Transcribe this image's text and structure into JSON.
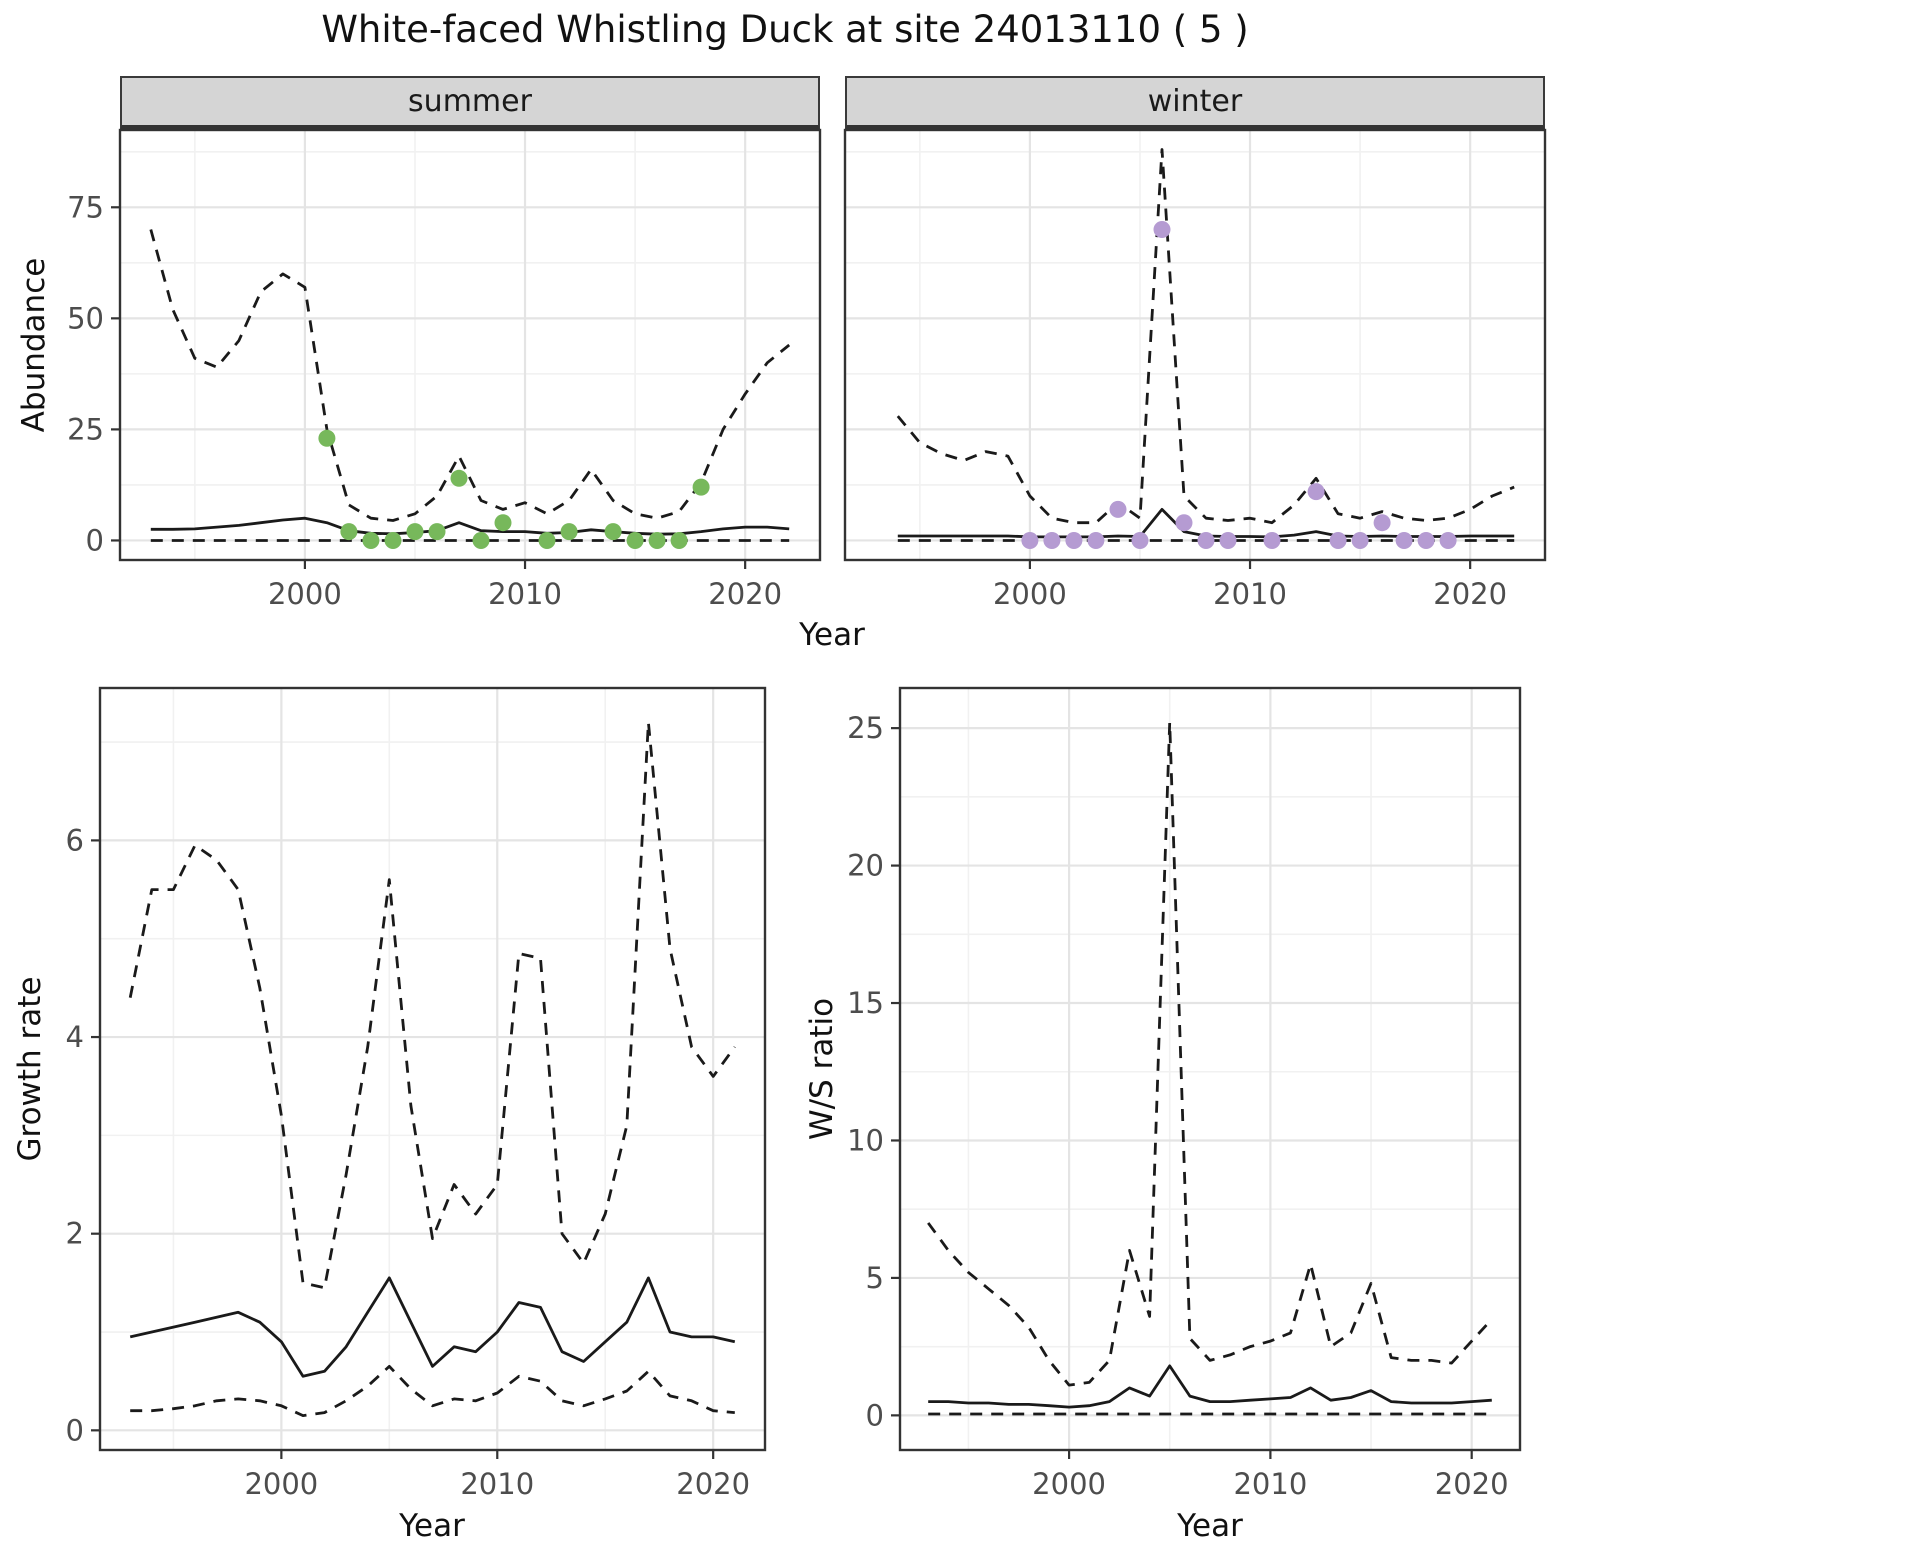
{
  "title": "White-faced Whistling Duck at site 24013110 ( 5 )",
  "colors": {
    "line": "#1a1a1a",
    "strip_bg": "#d5d5d5",
    "grid_major": "#e4e4e4",
    "grid_minor": "#f1f1f1",
    "panel_border": "#333333",
    "tick_text": "#4d4d4d",
    "summer_points": "#77b85b",
    "winter_points": "#b59bd2"
  },
  "chart_data": [
    {
      "id": "abundance-summer",
      "type": "line+scatter",
      "facet": "summer",
      "xlabel": "Year",
      "ylabel": "Abundance",
      "xlim": [
        1991.6,
        2023.4
      ],
      "ylim": [
        -4.4,
        92.4
      ],
      "xticks": [
        2000,
        2010,
        2020
      ],
      "yticks": [
        0,
        25,
        50,
        75
      ],
      "x": [
        1993,
        1994,
        1995,
        1996,
        1997,
        1998,
        1999,
        2000,
        2001,
        2002,
        2003,
        2004,
        2005,
        2006,
        2007,
        2008,
        2009,
        2010,
        2011,
        2012,
        2013,
        2014,
        2015,
        2016,
        2017,
        2018,
        2019,
        2020,
        2021,
        2022
      ],
      "series": [
        {
          "name": "upper_95ci",
          "linetype": "dashed",
          "y": [
            70,
            52,
            41,
            39,
            45,
            56,
            60,
            57,
            25,
            8,
            5,
            4.5,
            6,
            10,
            19,
            9,
            7,
            8.5,
            6,
            9,
            16,
            9,
            6,
            5,
            6.5,
            13,
            25,
            33,
            40,
            44
          ]
        },
        {
          "name": "median",
          "linetype": "solid",
          "y": [
            2.5,
            2.5,
            2.6,
            3,
            3.4,
            4,
            4.6,
            5,
            4,
            2.2,
            1.6,
            1.5,
            1.8,
            2.2,
            4,
            2.2,
            2,
            2,
            1.6,
            1.8,
            2.4,
            2,
            1.6,
            1.4,
            1.5,
            2,
            2.6,
            3,
            3,
            2.6
          ]
        },
        {
          "name": "lower_95ci",
          "linetype": "dashed",
          "y": [
            0,
            0,
            0,
            0,
            0,
            0,
            0,
            0,
            0,
            0,
            0,
            0,
            0,
            0,
            0,
            0,
            0,
            0,
            0,
            0,
            0,
            0,
            0,
            0,
            0,
            0,
            0,
            0,
            0,
            0
          ]
        }
      ],
      "points": {
        "name": "observed_summer_counts",
        "color": "#77b85b",
        "x": [
          2001,
          2002,
          2003,
          2004,
          2005,
          2006,
          2007,
          2008,
          2009,
          2011,
          2012,
          2014,
          2015,
          2016,
          2017,
          2018
        ],
        "y": [
          23,
          2,
          0,
          0,
          2,
          2,
          14,
          0,
          4,
          0,
          2,
          2,
          0,
          0,
          0,
          12
        ]
      }
    },
    {
      "id": "abundance-winter",
      "type": "line+scatter",
      "facet": "winter",
      "xlabel": "Year",
      "ylabel": "Abundance",
      "xlim": [
        1991.6,
        2023.4
      ],
      "ylim": [
        -4.4,
        92.4
      ],
      "xticks": [
        2000,
        2010,
        2020
      ],
      "yticks": [
        0,
        25,
        50,
        75
      ],
      "x": [
        1994,
        1995,
        1996,
        1997,
        1998,
        1999,
        2000,
        2001,
        2002,
        2003,
        2004,
        2005,
        2006,
        2007,
        2008,
        2009,
        2010,
        2011,
        2012,
        2013,
        2014,
        2015,
        2016,
        2017,
        2018,
        2019,
        2020,
        2021,
        2022
      ],
      "series": [
        {
          "name": "upper_95ci",
          "linetype": "dashed",
          "y": [
            28,
            22,
            19.5,
            18,
            20,
            19,
            10,
            5,
            4,
            4,
            8.5,
            5,
            88,
            10,
            5,
            4.5,
            5,
            4,
            8,
            14,
            6,
            5,
            6.5,
            5,
            4.5,
            5,
            7,
            10,
            12
          ]
        },
        {
          "name": "median",
          "linetype": "solid",
          "y": [
            1,
            1,
            1,
            1,
            1,
            1,
            0.8,
            0.8,
            0.8,
            0.8,
            1,
            0.9,
            7,
            2,
            1,
            0.9,
            0.9,
            0.8,
            1.2,
            2,
            1,
            0.9,
            1,
            0.9,
            0.9,
            0.9,
            1,
            1,
            1
          ]
        },
        {
          "name": "lower_95ci",
          "linetype": "dashed",
          "y": [
            0,
            0,
            0,
            0,
            0,
            0,
            0,
            0,
            0,
            0,
            0,
            0,
            0,
            0,
            0,
            0,
            0,
            0,
            0,
            0,
            0,
            0,
            0,
            0,
            0,
            0,
            0,
            0,
            0
          ]
        }
      ],
      "points": {
        "name": "observed_winter_counts",
        "color": "#b59bd2",
        "x": [
          2000,
          2001,
          2002,
          2003,
          2004,
          2005,
          2006,
          2007,
          2008,
          2009,
          2011,
          2013,
          2014,
          2015,
          2016,
          2017,
          2018,
          2019
        ],
        "y": [
          0,
          0,
          0,
          0,
          7,
          0,
          70,
          4,
          0,
          0,
          0,
          11,
          0,
          0,
          4,
          0,
          0,
          0
        ]
      }
    },
    {
      "id": "growth-rate",
      "type": "line",
      "facet": null,
      "xlabel": "Year",
      "ylabel": "Growth rate",
      "xlim": [
        1991.6,
        2022.4
      ],
      "ylim": [
        -0.2,
        7.55
      ],
      "xticks": [
        2000,
        2010,
        2020
      ],
      "yticks": [
        0,
        2,
        4,
        6
      ],
      "x": [
        1993,
        1994,
        1995,
        1996,
        1997,
        1998,
        1999,
        2000,
        2001,
        2002,
        2003,
        2004,
        2005,
        2006,
        2007,
        2008,
        2009,
        2010,
        2011,
        2012,
        2013,
        2014,
        2015,
        2016,
        2017,
        2018,
        2019,
        2020,
        2021
      ],
      "series": [
        {
          "name": "upper_95ci",
          "linetype": "dashed",
          "y": [
            4.4,
            5.5,
            5.5,
            5.95,
            5.8,
            5.5,
            4.5,
            3.2,
            1.5,
            1.45,
            2.6,
            3.9,
            5.6,
            3.3,
            1.95,
            2.5,
            2.2,
            2.5,
            4.85,
            4.8,
            2,
            1.7,
            2.2,
            3.1,
            7.2,
            4.9,
            3.9,
            3.6,
            3.9
          ]
        },
        {
          "name": "median",
          "linetype": "solid",
          "y": [
            0.95,
            1,
            1.05,
            1.1,
            1.15,
            1.2,
            1.1,
            0.9,
            0.55,
            0.6,
            0.85,
            1.2,
            1.55,
            1.1,
            0.65,
            0.85,
            0.8,
            1,
            1.3,
            1.25,
            0.8,
            0.7,
            0.9,
            1.1,
            1.55,
            1,
            0.95,
            0.95,
            0.9
          ]
        },
        {
          "name": "lower_95ci",
          "linetype": "dashed",
          "y": [
            0.2,
            0.2,
            0.22,
            0.25,
            0.3,
            0.32,
            0.3,
            0.25,
            0.15,
            0.18,
            0.3,
            0.45,
            0.65,
            0.42,
            0.25,
            0.32,
            0.3,
            0.38,
            0.55,
            0.5,
            0.3,
            0.25,
            0.32,
            0.4,
            0.6,
            0.35,
            0.3,
            0.2,
            0.18
          ]
        }
      ],
      "points": null
    },
    {
      "id": "ws-ratio",
      "type": "line",
      "facet": null,
      "xlabel": "Year",
      "ylabel": "W/S ratio",
      "xlim": [
        1991.6,
        2022.4
      ],
      "ylim": [
        -1.26,
        26.46
      ],
      "xticks": [
        2000,
        2010,
        2020
      ],
      "yticks": [
        0,
        5,
        10,
        15,
        20,
        25
      ],
      "x": [
        1993,
        1994,
        1995,
        1996,
        1997,
        1998,
        1999,
        2000,
        2001,
        2002,
        2003,
        2004,
        2005,
        2006,
        2007,
        2008,
        2009,
        2010,
        2011,
        2012,
        2013,
        2014,
        2015,
        2016,
        2017,
        2018,
        2019,
        2020,
        2021
      ],
      "series": [
        {
          "name": "upper_95ci",
          "linetype": "dashed",
          "y": [
            7,
            6,
            5.2,
            4.6,
            4,
            3.2,
            2,
            1.1,
            1.2,
            2,
            6,
            3.6,
            25.2,
            2.8,
            2,
            2.2,
            2.5,
            2.7,
            3,
            5.5,
            2.5,
            3,
            4.8,
            2.1,
            2,
            2,
            1.9,
            2.7,
            3.5
          ]
        },
        {
          "name": "median",
          "linetype": "solid",
          "y": [
            0.5,
            0.5,
            0.45,
            0.45,
            0.4,
            0.4,
            0.35,
            0.3,
            0.35,
            0.5,
            1,
            0.7,
            1.8,
            0.7,
            0.5,
            0.5,
            0.55,
            0.6,
            0.65,
            1,
            0.55,
            0.65,
            0.9,
            0.5,
            0.45,
            0.45,
            0.45,
            0.5,
            0.55
          ]
        },
        {
          "name": "lower_95ci",
          "linetype": "dashed",
          "y": [
            0.05,
            0.05,
            0.05,
            0.05,
            0.05,
            0.05,
            0.05,
            0.05,
            0.05,
            0.05,
            0.05,
            0.05,
            0.05,
            0.05,
            0.05,
            0.05,
            0.05,
            0.05,
            0.05,
            0.05,
            0.05,
            0.05,
            0.05,
            0.05,
            0.05,
            0.05,
            0.05,
            0.05,
            0.05
          ]
        }
      ],
      "points": null
    }
  ]
}
